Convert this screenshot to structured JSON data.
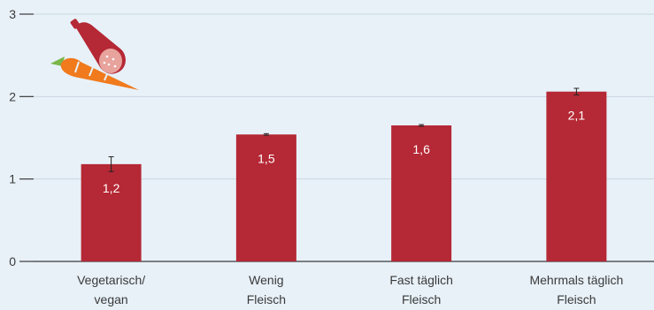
{
  "chart_data": {
    "type": "bar",
    "title": "",
    "xlabel": "",
    "ylabel": "",
    "ylim": [
      0,
      3
    ],
    "yticks": [
      0,
      1,
      2,
      3
    ],
    "ytick_labels": [
      "0",
      "1",
      "2",
      "3"
    ],
    "grid": true,
    "categories": [
      [
        "Vegetarisch/",
        "vegan"
      ],
      [
        "Wenig",
        "Fleisch"
      ],
      [
        "Fast täglich",
        "Fleisch"
      ],
      [
        "Mehrmals täglich",
        "Fleisch"
      ]
    ],
    "values": [
      1.18,
      1.54,
      1.65,
      2.06
    ],
    "value_labels": [
      "1,2",
      "1,5",
      "1,6",
      "2,1"
    ],
    "error_bars": [
      [
        1.09,
        1.27
      ],
      [
        1.53,
        1.55
      ],
      [
        1.64,
        1.66
      ],
      [
        2.02,
        2.1
      ]
    ],
    "colors": {
      "background": "#e8f1f8",
      "bar": "#b52835",
      "grid": "#c9d7e1",
      "axis": "#3a3a3a"
    },
    "illustration": {
      "icon": "sausage-and-carrot-icon",
      "colors": {
        "sausage": "#b52835",
        "sausage_slice": "#e8a39d",
        "carrot": "#f07a1c",
        "carrot_leaf": "#7ab648"
      }
    }
  }
}
